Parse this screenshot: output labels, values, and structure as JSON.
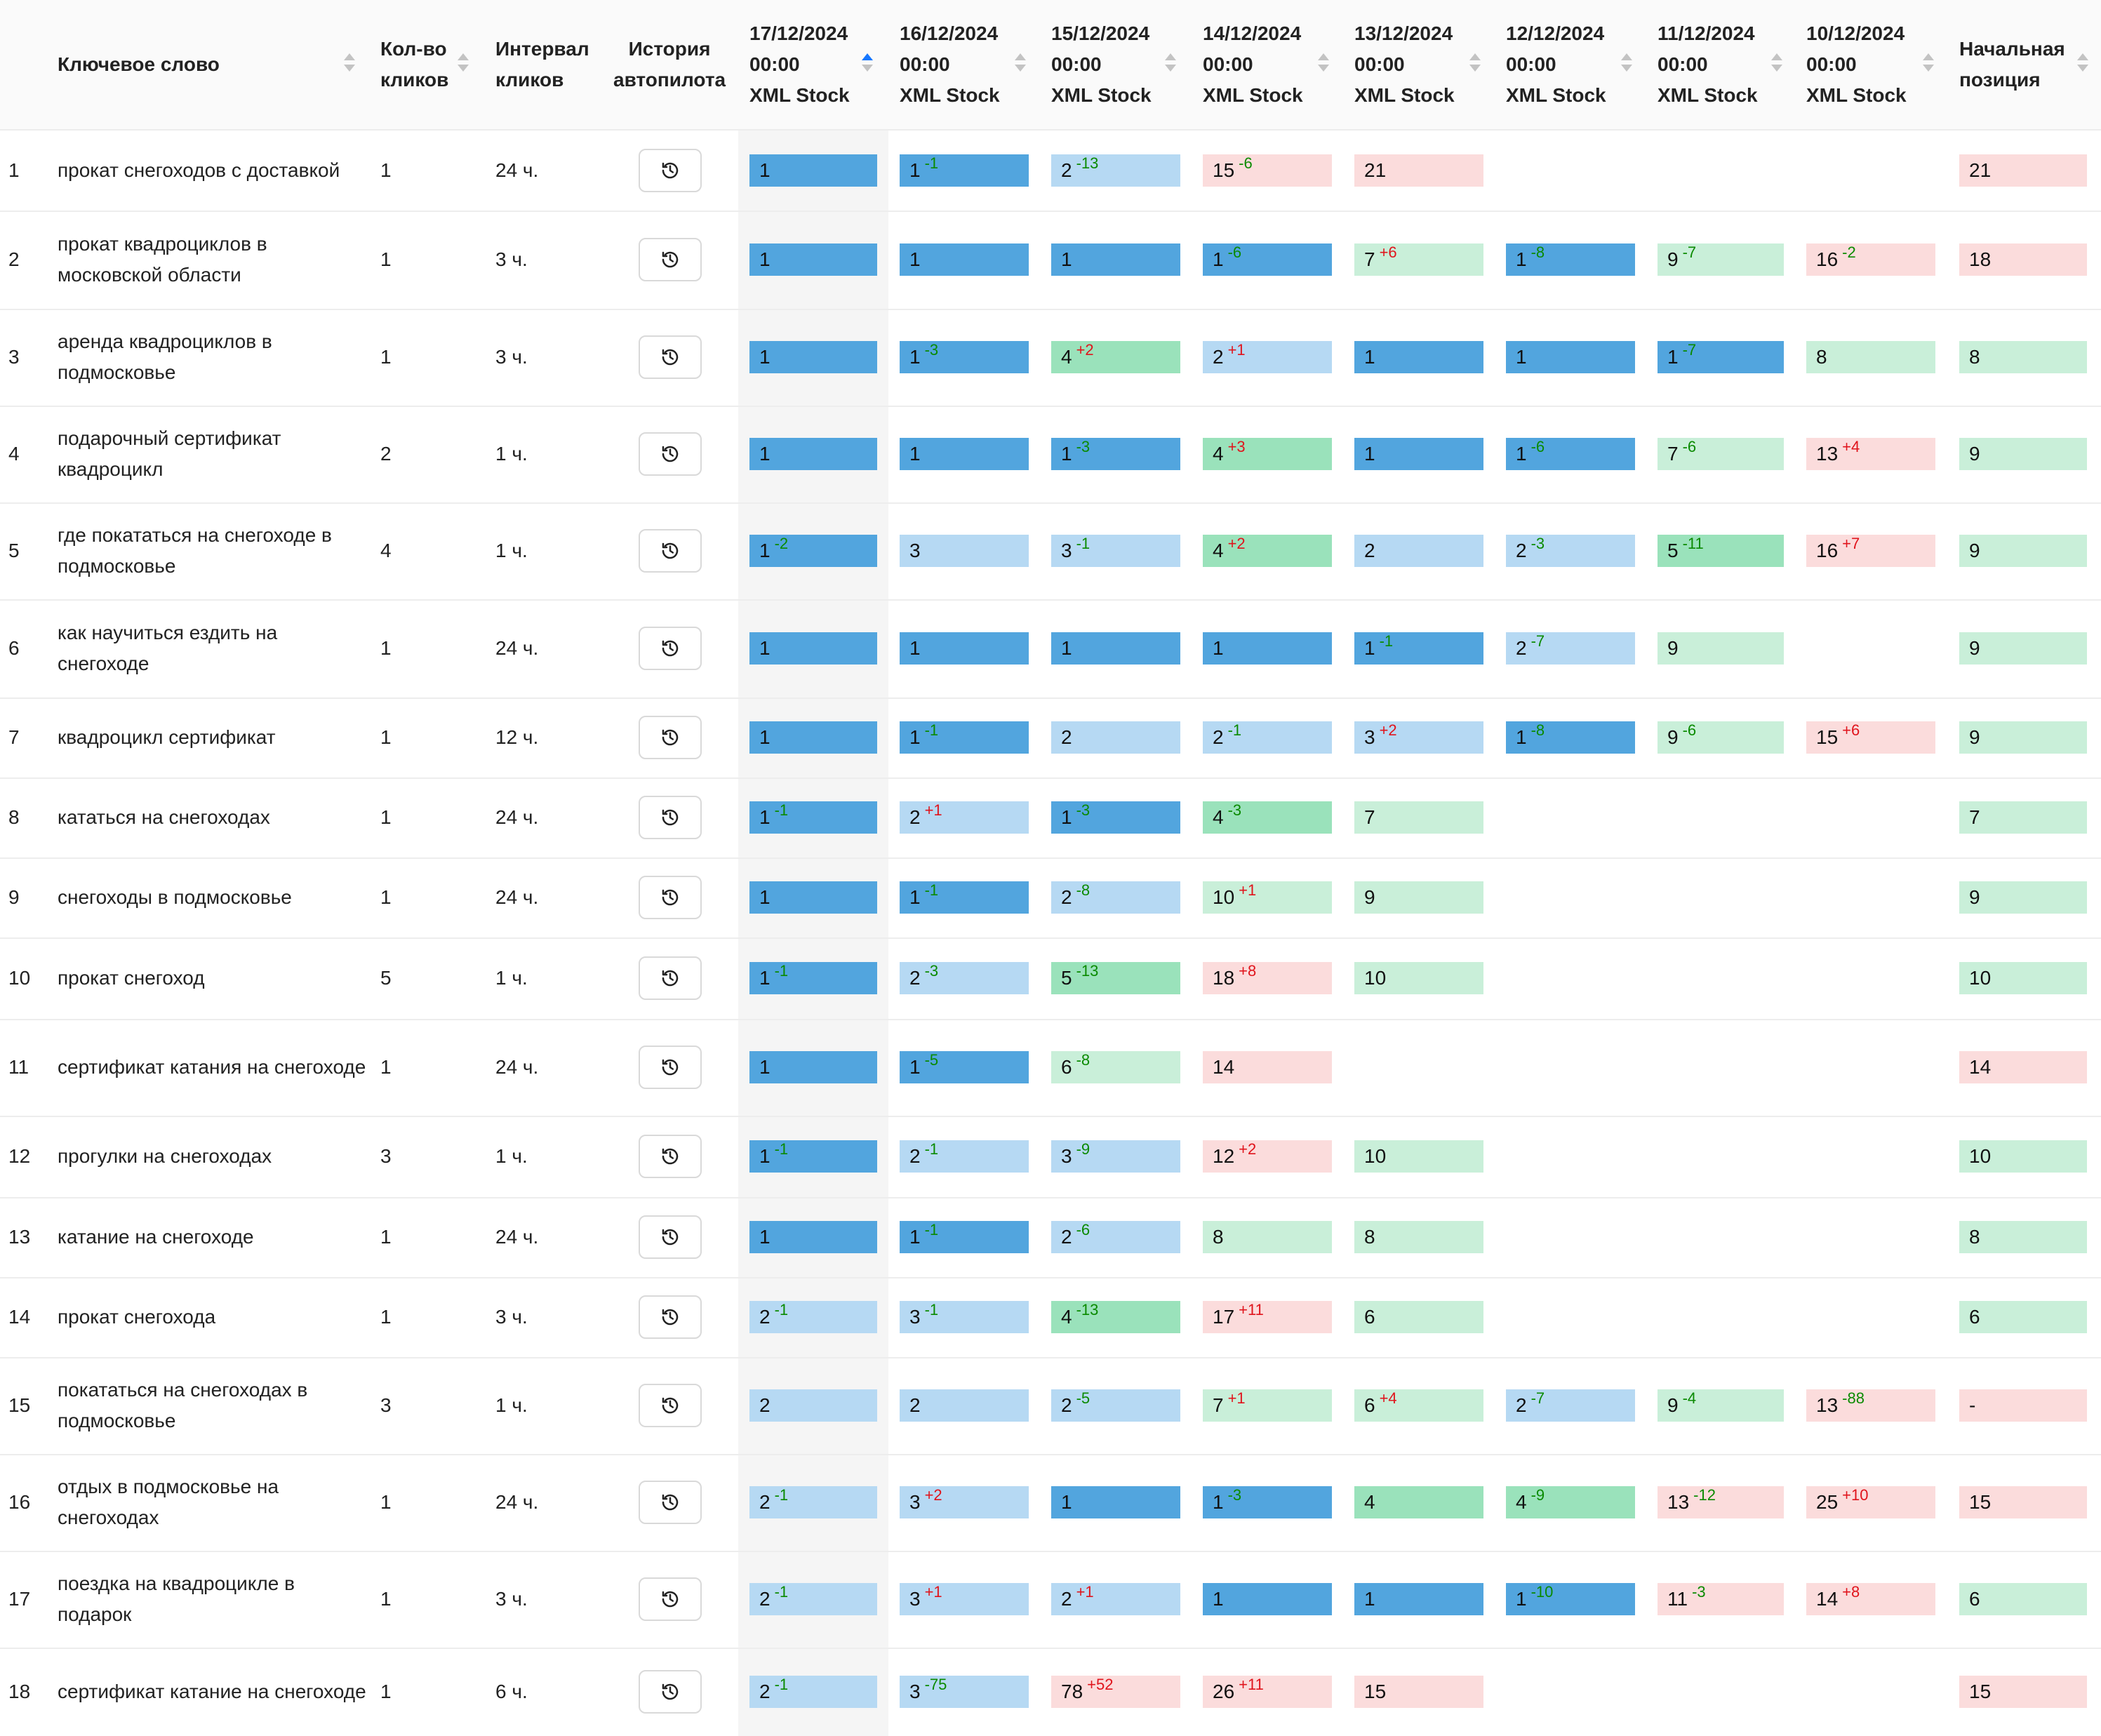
{
  "colors": {
    "blue": "#52a5de",
    "light_blue": "#b6d9f3",
    "green": "#9ae2bb",
    "light_green": "#c9efd9",
    "pink": "#fbdcdc",
    "up_delta": "#e0141c",
    "down_delta": "#0a8a00",
    "sort_active": "#1677ff"
  },
  "icons": {
    "history": "history-clock-icon",
    "sort": "sort-arrows-icon"
  },
  "table": {
    "columns": [
      {
        "key": "keyword",
        "label": "Ключевое слово",
        "sortable": true
      },
      {
        "key": "clicks",
        "label": "Кол-во\nкликов",
        "sortable": true
      },
      {
        "key": "interval",
        "label": "Интервал\nкликов",
        "sortable": false
      },
      {
        "key": "history",
        "label": "История\nавтопилота",
        "sortable": false
      },
      {
        "key": "d0",
        "label": "17/12/2024\n00:00\nXML Stock",
        "sortable": true,
        "active": true
      },
      {
        "key": "d1",
        "label": "16/12/2024\n00:00\nXML Stock",
        "sortable": true
      },
      {
        "key": "d2",
        "label": "15/12/2024\n00:00\nXML Stock",
        "sortable": true
      },
      {
        "key": "d3",
        "label": "14/12/2024\n00:00\nXML Stock",
        "sortable": true
      },
      {
        "key": "d4",
        "label": "13/12/2024\n00:00\nXML Stock",
        "sortable": true
      },
      {
        "key": "d5",
        "label": "12/12/2024\n00:00\nXML Stock",
        "sortable": true
      },
      {
        "key": "d6",
        "label": "11/12/2024\n00:00\nXML Stock",
        "sortable": true
      },
      {
        "key": "d7",
        "label": "10/12/2024\n00:00\nXML Stock",
        "sortable": true
      },
      {
        "key": "start",
        "label": "Начальная\nпозиция",
        "sortable": true
      }
    ],
    "rows": [
      {
        "n": "1",
        "kw": "прокат снегоходов с доставкой",
        "clicks": "1",
        "interval": "24 ч.",
        "cells": [
          [
            "1",
            "",
            "blue"
          ],
          [
            "1",
            "-1",
            "blue"
          ],
          [
            "2",
            "-13",
            "lblue"
          ],
          [
            "15",
            "-6",
            "pink"
          ],
          [
            "21",
            "",
            "pink"
          ],
          null,
          null,
          null,
          [
            "21",
            "",
            "pink"
          ]
        ]
      },
      {
        "n": "2",
        "kw": "прокат квадроциклов в московской области",
        "clicks": "1",
        "interval": "3 ч.",
        "cells": [
          [
            "1",
            "",
            "blue"
          ],
          [
            "1",
            "",
            "blue"
          ],
          [
            "1",
            "",
            "blue"
          ],
          [
            "1",
            "-6",
            "blue"
          ],
          [
            "7",
            "+6",
            "lgreen"
          ],
          [
            "1",
            "-8",
            "blue"
          ],
          [
            "9",
            "-7",
            "lgreen"
          ],
          [
            "16",
            "-2",
            "pink"
          ],
          [
            "18",
            "",
            "pink"
          ]
        ]
      },
      {
        "n": "3",
        "kw": "аренда квадроциклов в подмосковье",
        "clicks": "1",
        "interval": "3 ч.",
        "cells": [
          [
            "1",
            "",
            "blue"
          ],
          [
            "1",
            "-3",
            "blue"
          ],
          [
            "4",
            "+2",
            "green"
          ],
          [
            "2",
            "+1",
            "lblue"
          ],
          [
            "1",
            "",
            "blue"
          ],
          [
            "1",
            "",
            "blue"
          ],
          [
            "1",
            "-7",
            "blue"
          ],
          [
            "8",
            "",
            "lgreen"
          ],
          [
            "8",
            "",
            "lgreen"
          ]
        ]
      },
      {
        "n": "4",
        "kw": "подарочный сертификат квадроцикл",
        "clicks": "2",
        "interval": "1 ч.",
        "cells": [
          [
            "1",
            "",
            "blue"
          ],
          [
            "1",
            "",
            "blue"
          ],
          [
            "1",
            "-3",
            "blue"
          ],
          [
            "4",
            "+3",
            "green"
          ],
          [
            "1",
            "",
            "blue"
          ],
          [
            "1",
            "-6",
            "blue"
          ],
          [
            "7",
            "-6",
            "lgreen"
          ],
          [
            "13",
            "+4",
            "pink"
          ],
          [
            "9",
            "",
            "lgreen"
          ]
        ]
      },
      {
        "n": "5",
        "kw": "где покататься на снегоходе в подмосковье",
        "clicks": "4",
        "interval": "1 ч.",
        "cells": [
          [
            "1",
            "-2",
            "blue"
          ],
          [
            "3",
            "",
            "lblue"
          ],
          [
            "3",
            "-1",
            "lblue"
          ],
          [
            "4",
            "+2",
            "green"
          ],
          [
            "2",
            "",
            "lblue"
          ],
          [
            "2",
            "-3",
            "lblue"
          ],
          [
            "5",
            "-11",
            "green"
          ],
          [
            "16",
            "+7",
            "pink"
          ],
          [
            "9",
            "",
            "lgreen"
          ]
        ]
      },
      {
        "n": "6",
        "kw": "как научиться ездить на снегоходе",
        "clicks": "1",
        "interval": "24 ч.",
        "cells": [
          [
            "1",
            "",
            "blue"
          ],
          [
            "1",
            "",
            "blue"
          ],
          [
            "1",
            "",
            "blue"
          ],
          [
            "1",
            "",
            "blue"
          ],
          [
            "1",
            "-1",
            "blue"
          ],
          [
            "2",
            "-7",
            "lblue"
          ],
          [
            "9",
            "",
            "lgreen"
          ],
          null,
          [
            "9",
            "",
            "lgreen"
          ]
        ]
      },
      {
        "n": "7",
        "kw": "квадроцикл сертификат",
        "clicks": "1",
        "interval": "12 ч.",
        "cells": [
          [
            "1",
            "",
            "blue"
          ],
          [
            "1",
            "-1",
            "blue"
          ],
          [
            "2",
            "",
            "lblue"
          ],
          [
            "2",
            "-1",
            "lblue"
          ],
          [
            "3",
            "+2",
            "lblue"
          ],
          [
            "1",
            "-8",
            "blue"
          ],
          [
            "9",
            "-6",
            "lgreen"
          ],
          [
            "15",
            "+6",
            "pink"
          ],
          [
            "9",
            "",
            "lgreen"
          ]
        ]
      },
      {
        "n": "8",
        "kw": "кататься на снегоходах",
        "clicks": "1",
        "interval": "24 ч.",
        "cells": [
          [
            "1",
            "-1",
            "blue"
          ],
          [
            "2",
            "+1",
            "lblue"
          ],
          [
            "1",
            "-3",
            "blue"
          ],
          [
            "4",
            "-3",
            "green"
          ],
          [
            "7",
            "",
            "lgreen"
          ],
          null,
          null,
          null,
          [
            "7",
            "",
            "lgreen"
          ]
        ]
      },
      {
        "n": "9",
        "kw": "снегоходы в подмосковье",
        "clicks": "1",
        "interval": "24 ч.",
        "cells": [
          [
            "1",
            "",
            "blue"
          ],
          [
            "1",
            "-1",
            "blue"
          ],
          [
            "2",
            "-8",
            "lblue"
          ],
          [
            "10",
            "+1",
            "lgreen"
          ],
          [
            "9",
            "",
            "lgreen"
          ],
          null,
          null,
          null,
          [
            "9",
            "",
            "lgreen"
          ]
        ]
      },
      {
        "n": "10",
        "kw": "прокат снегоход",
        "clicks": "5",
        "interval": "1 ч.",
        "cells": [
          [
            "1",
            "-1",
            "blue"
          ],
          [
            "2",
            "-3",
            "lblue"
          ],
          [
            "5",
            "-13",
            "green"
          ],
          [
            "18",
            "+8",
            "pink"
          ],
          [
            "10",
            "",
            "lgreen"
          ],
          null,
          null,
          null,
          [
            "10",
            "",
            "lgreen"
          ]
        ]
      },
      {
        "n": "11",
        "kw": "сертификат катания на снегоходе",
        "clicks": "1",
        "interval": "24 ч.",
        "cells": [
          [
            "1",
            "",
            "blue"
          ],
          [
            "1",
            "-5",
            "blue"
          ],
          [
            "6",
            "-8",
            "lgreen"
          ],
          [
            "14",
            "",
            "pink"
          ],
          null,
          null,
          null,
          null,
          [
            "14",
            "",
            "pink"
          ]
        ]
      },
      {
        "n": "12",
        "kw": "прогулки на снегоходах",
        "clicks": "3",
        "interval": "1 ч.",
        "cells": [
          [
            "1",
            "-1",
            "blue"
          ],
          [
            "2",
            "-1",
            "lblue"
          ],
          [
            "3",
            "-9",
            "lblue"
          ],
          [
            "12",
            "+2",
            "pink"
          ],
          [
            "10",
            "",
            "lgreen"
          ],
          null,
          null,
          null,
          [
            "10",
            "",
            "lgreen"
          ]
        ]
      },
      {
        "n": "13",
        "kw": "катание на снегоходе",
        "clicks": "1",
        "interval": "24 ч.",
        "cells": [
          [
            "1",
            "",
            "blue"
          ],
          [
            "1",
            "-1",
            "blue"
          ],
          [
            "2",
            "-6",
            "lblue"
          ],
          [
            "8",
            "",
            "lgreen"
          ],
          [
            "8",
            "",
            "lgreen"
          ],
          null,
          null,
          null,
          [
            "8",
            "",
            "lgreen"
          ]
        ]
      },
      {
        "n": "14",
        "kw": "прокат снегохода",
        "clicks": "1",
        "interval": "3 ч.",
        "cells": [
          [
            "2",
            "-1",
            "lblue"
          ],
          [
            "3",
            "-1",
            "lblue"
          ],
          [
            "4",
            "-13",
            "green"
          ],
          [
            "17",
            "+11",
            "pink"
          ],
          [
            "6",
            "",
            "lgreen"
          ],
          null,
          null,
          null,
          [
            "6",
            "",
            "lgreen"
          ]
        ]
      },
      {
        "n": "15",
        "kw": "покататься на снегоходах в подмосковье",
        "clicks": "3",
        "interval": "1 ч.",
        "cells": [
          [
            "2",
            "",
            "lblue"
          ],
          [
            "2",
            "",
            "lblue"
          ],
          [
            "2",
            "-5",
            "lblue"
          ],
          [
            "7",
            "+1",
            "lgreen"
          ],
          [
            "6",
            "+4",
            "lgreen"
          ],
          [
            "2",
            "-7",
            "lblue"
          ],
          [
            "9",
            "-4",
            "lgreen"
          ],
          [
            "13",
            "-88",
            "pink"
          ],
          [
            "-",
            "",
            "pink"
          ]
        ]
      },
      {
        "n": "16",
        "kw": "отдых в подмосковье на снегоходах",
        "clicks": "1",
        "interval": "24 ч.",
        "cells": [
          [
            "2",
            "-1",
            "lblue"
          ],
          [
            "3",
            "+2",
            "lblue"
          ],
          [
            "1",
            "",
            "blue"
          ],
          [
            "1",
            "-3",
            "blue"
          ],
          [
            "4",
            "",
            "green"
          ],
          [
            "4",
            "-9",
            "green"
          ],
          [
            "13",
            "-12",
            "pink"
          ],
          [
            "25",
            "+10",
            "pink"
          ],
          [
            "15",
            "",
            "pink"
          ]
        ]
      },
      {
        "n": "17",
        "kw": "поездка на квадроцикле в подарок",
        "clicks": "1",
        "interval": "3 ч.",
        "cells": [
          [
            "2",
            "-1",
            "lblue"
          ],
          [
            "3",
            "+1",
            "lblue"
          ],
          [
            "2",
            "+1",
            "lblue"
          ],
          [
            "1",
            "",
            "blue"
          ],
          [
            "1",
            "",
            "blue"
          ],
          [
            "1",
            "-10",
            "blue"
          ],
          [
            "11",
            "-3",
            "pink"
          ],
          [
            "14",
            "+8",
            "pink"
          ],
          [
            "6",
            "",
            "lgreen"
          ]
        ]
      },
      {
        "n": "18",
        "kw": "сертификат катание на снегоходе",
        "clicks": "1",
        "interval": "6 ч.",
        "cells": [
          [
            "2",
            "-1",
            "lblue"
          ],
          [
            "3",
            "-75",
            "lblue"
          ],
          [
            "78",
            "+52",
            "pink"
          ],
          [
            "26",
            "+11",
            "pink"
          ],
          [
            "15",
            "",
            "pink"
          ],
          null,
          null,
          null,
          [
            "15",
            "",
            "pink"
          ]
        ]
      }
    ]
  }
}
